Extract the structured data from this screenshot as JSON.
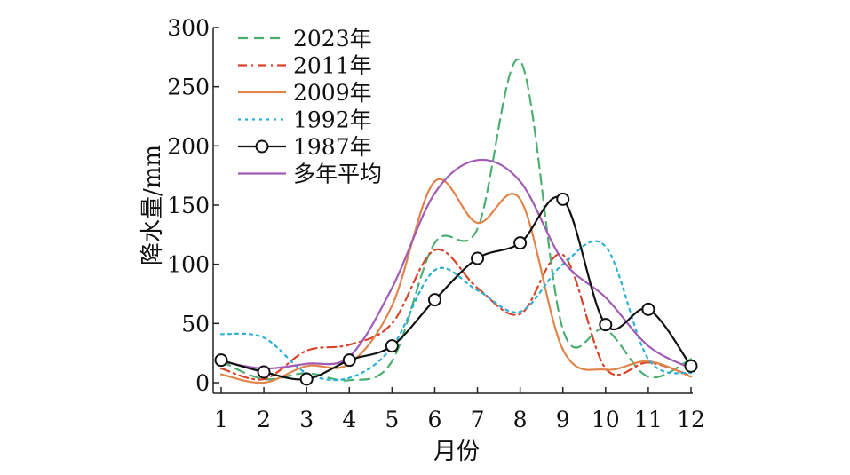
{
  "chart_data": {
    "type": "line",
    "title": "",
    "xlabel": "月份",
    "ylabel": "降水量/mm",
    "categories": [
      "1",
      "2",
      "3",
      "4",
      "5",
      "6",
      "7",
      "8",
      "9",
      "10",
      "11",
      "12"
    ],
    "x": [
      1,
      2,
      3,
      4,
      5,
      6,
      7,
      8,
      9,
      10,
      11,
      12
    ],
    "xlim": [
      1,
      12
    ],
    "ylim": [
      0,
      300
    ],
    "yticks": [
      0,
      50,
      100,
      150,
      200,
      250,
      300
    ],
    "grid": false,
    "legend_position": "top-left",
    "series": [
      {
        "name": "2023年",
        "color": "#4caf72",
        "style": "dashed",
        "markers": false,
        "values": [
          18,
          3,
          8,
          2,
          18,
          118,
          130,
          272,
          45,
          45,
          5,
          20
        ]
      },
      {
        "name": "2011年",
        "color": "#d9442b",
        "style": "dashdot",
        "markers": false,
        "values": [
          12,
          3,
          27,
          32,
          50,
          112,
          80,
          58,
          108,
          12,
          17,
          6
        ]
      },
      {
        "name": "2009年",
        "color": "#e0844a",
        "style": "solid",
        "markers": false,
        "values": [
          7,
          0,
          14,
          16,
          65,
          170,
          135,
          155,
          28,
          11,
          18,
          5
        ]
      },
      {
        "name": "1992年",
        "color": "#2ab0d6",
        "style": "dotted",
        "markers": false,
        "values": [
          41,
          38,
          8,
          4,
          30,
          95,
          78,
          60,
          100,
          115,
          20,
          8
        ]
      },
      {
        "name": "1987年",
        "color": "#111111",
        "style": "solid",
        "markers": true,
        "values": [
          19,
          9,
          3,
          19,
          31,
          70,
          105,
          118,
          155,
          49,
          62,
          14
        ]
      },
      {
        "name": "多年平均",
        "color": "#a25bb5",
        "style": "solid",
        "markers": false,
        "values": [
          18,
          12,
          16,
          22,
          80,
          160,
          188,
          170,
          103,
          72,
          31,
          12
        ]
      }
    ]
  }
}
